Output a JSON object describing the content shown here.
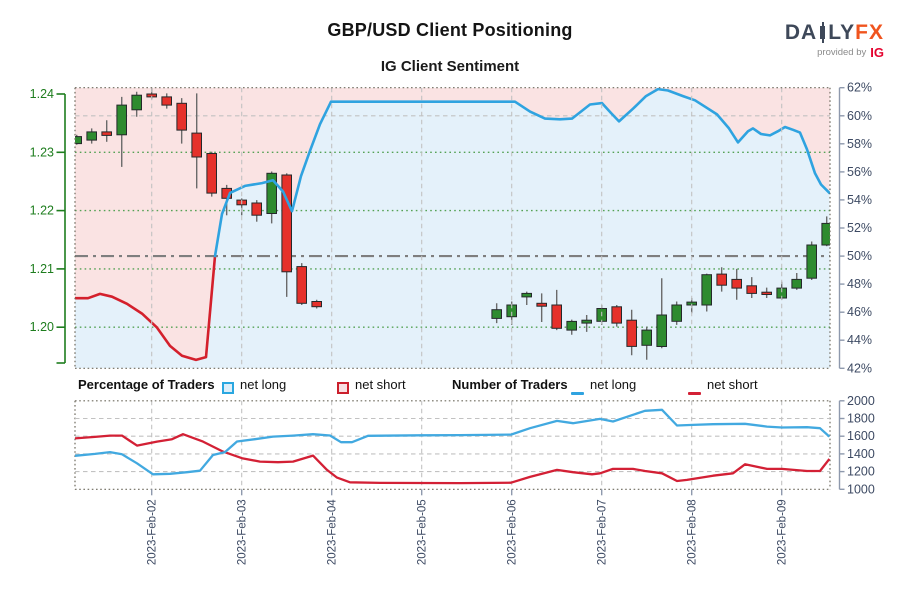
{
  "header": {
    "title": "GBP/USD Client Positioning",
    "subtitle": "IG Client Sentiment"
  },
  "logo": {
    "brand_prefix": "DA",
    "brand_suffix": "LY",
    "brand_accent": "FX",
    "provided_by": "provided by",
    "provider": "IG"
  },
  "legend": {
    "percentage_group_label": "Percentage of Traders",
    "percentage_net_long_label": "net long",
    "percentage_net_short_label": "net short",
    "number_group_label": "Number of Traders",
    "number_net_long_label": "net long",
    "number_net_short_label": "net short"
  },
  "colors": {
    "sentiment_long_line": "#2fa3e0",
    "sentiment_short_line": "#d4202c",
    "fill_above_line": "#fae3e3",
    "fill_below_line": "#e4f1fa",
    "candle_up": "#2e8b2f",
    "candle_down": "#e5312b",
    "candle_outline": "#25292b",
    "wick": "#6a6a6a",
    "price_axis": "#1e7d1e",
    "axis_labels": "#3d4a63",
    "grid_green": "#55a255",
    "grid_grey": "#c2c2c2",
    "reference_line": "#7e7e7e",
    "panel_border": "#6f6b5f",
    "count_long_line": "#42a9e0",
    "count_short_line": "#d32035"
  },
  "chart_data": [
    {
      "type": "candlestick+line",
      "title": "IG Client Sentiment",
      "x_tick_labels": [
        "2023-Feb-02",
        "2023-Feb-03",
        "2023-Feb-04",
        "2023-Feb-05",
        "2023-Feb-06",
        "2023-Feb-07",
        "2023-Feb-08",
        "2023-Feb-09"
      ],
      "price_axis": {
        "tick_labels": [
          "1.24",
          "1.23",
          "1.22",
          "1.21",
          "1.20"
        ],
        "tick_values": [
          1.24,
          1.23,
          1.22,
          1.21,
          1.2
        ],
        "grid_values": [
          1.23,
          1.22,
          1.21,
          1.2
        ]
      },
      "pct_axis": {
        "tick_labels": [
          "62%",
          "60%",
          "58%",
          "56%",
          "54%",
          "52%",
          "50%",
          "48%",
          "46%",
          "44%",
          "42%"
        ],
        "tick_values": [
          62,
          60,
          58,
          56,
          54,
          52,
          50,
          48,
          46,
          44,
          42
        ],
        "grid_values": [
          60
        ],
        "reference_value": 50,
        "range": [
          42,
          62
        ]
      },
      "candles_columns": [
        "day_offset",
        "open",
        "high",
        "low",
        "close"
      ],
      "candles": [
        [
          -0.833,
          1.2315,
          1.233,
          1.2313,
          1.2327
        ],
        [
          -0.667,
          1.2321,
          1.2341,
          1.2315,
          1.2335
        ],
        [
          -0.5,
          1.2335,
          1.2355,
          1.2318,
          1.2329
        ],
        [
          -0.333,
          1.233,
          1.2395,
          1.2275,
          1.2381
        ],
        [
          -0.167,
          1.2373,
          1.2404,
          1.2361,
          1.2398
        ],
        [
          0,
          1.24,
          1.241,
          1.2391,
          1.2395
        ],
        [
          0.167,
          1.2395,
          1.2401,
          1.2375,
          1.2381
        ],
        [
          0.333,
          1.2384,
          1.2393,
          1.2315,
          1.2338
        ],
        [
          0.5,
          1.2333,
          1.2401,
          1.2238,
          1.2292
        ],
        [
          0.667,
          1.2298,
          1.2301,
          1.2224,
          1.223
        ],
        [
          0.833,
          1.2238,
          1.2244,
          1.2192,
          1.2221
        ],
        [
          1,
          1.2218,
          1.2221,
          1.2192,
          1.221
        ],
        [
          1.167,
          1.2213,
          1.2218,
          1.2181,
          1.2192
        ],
        [
          1.333,
          1.2195,
          1.2267,
          1.2178,
          1.2264
        ],
        [
          1.5,
          1.2261,
          1.2264,
          1.2052,
          1.2095
        ],
        [
          1.667,
          1.2104,
          1.211,
          1.2038,
          1.2041
        ],
        [
          1.833,
          1.2044,
          1.2047,
          1.2032,
          1.2035
        ],
        [
          3.833,
          1.2015,
          1.2041,
          1.2007,
          1.203
        ],
        [
          4,
          1.2018,
          1.2044,
          1.2004,
          1.2038
        ],
        [
          4.167,
          1.2052,
          1.2061,
          1.2038,
          1.2058
        ],
        [
          4.333,
          1.2041,
          1.2058,
          1.2009,
          1.2036
        ],
        [
          4.5,
          1.2038,
          1.2064,
          1.1995,
          1.1998
        ],
        [
          4.667,
          1.1995,
          1.2013,
          1.1987,
          1.201
        ],
        [
          4.833,
          1.2007,
          1.2021,
          1.1992,
          1.2012
        ],
        [
          5,
          1.201,
          1.2038,
          1.2004,
          1.2032
        ],
        [
          5.167,
          1.2035,
          1.2038,
          1.2001,
          1.2007
        ],
        [
          5.333,
          1.2012,
          1.203,
          1.1952,
          1.1967
        ],
        [
          5.5,
          1.1969,
          1.2001,
          1.1944,
          1.1995
        ],
        [
          5.667,
          1.1967,
          1.2084,
          1.1964,
          1.2021
        ],
        [
          5.833,
          1.201,
          1.2044,
          1.2004,
          1.2038
        ],
        [
          6,
          1.2038,
          1.205,
          1.2024,
          1.2043
        ],
        [
          6.167,
          1.2038,
          1.2092,
          1.2027,
          1.209
        ],
        [
          6.333,
          1.2091,
          1.2103,
          1.2061,
          1.2072
        ],
        [
          6.5,
          1.2082,
          1.21,
          1.2047,
          1.2067
        ],
        [
          6.667,
          1.2071,
          1.2086,
          1.205,
          1.2058
        ],
        [
          6.833,
          1.206,
          1.2068,
          1.205,
          1.2056
        ],
        [
          7,
          1.205,
          1.2078,
          1.2047,
          1.2067
        ],
        [
          7.167,
          1.2067,
          1.2093,
          1.2064,
          1.2082
        ],
        [
          7.333,
          1.2084,
          1.2147,
          1.2081,
          1.2141
        ],
        [
          7.5,
          1.2141,
          1.219,
          1.2139,
          1.2178
        ]
      ],
      "sentiment_net_long_pct": {
        "short_segment": [
          [
            -0.852,
            47.0
          ],
          [
            -0.708,
            47.0
          ],
          [
            -0.574,
            47.3
          ],
          [
            -0.441,
            47.1
          ],
          [
            -0.274,
            46.6
          ],
          [
            -0.108,
            45.9
          ],
          [
            0.059,
            44.9
          ],
          [
            0.203,
            43.6
          ],
          [
            0.337,
            42.9
          ],
          [
            0.492,
            42.6
          ],
          [
            0.603,
            42.8
          ],
          [
            0.703,
            50.0
          ]
        ],
        "long_segment": [
          [
            0.703,
            50.0
          ],
          [
            0.781,
            53.0
          ],
          [
            0.87,
            54.5
          ],
          [
            1.037,
            55.0
          ],
          [
            1.226,
            55.2
          ],
          [
            1.348,
            55.4
          ],
          [
            1.459,
            54.6
          ],
          [
            1.559,
            53.2
          ],
          [
            1.659,
            55.7
          ],
          [
            1.759,
            57.5
          ],
          [
            1.87,
            59.4
          ],
          [
            1.992,
            61.0
          ],
          [
            3.0,
            61.0
          ],
          [
            4.037,
            61.0
          ],
          [
            4.203,
            60.3
          ],
          [
            4.37,
            59.8
          ],
          [
            4.537,
            59.75
          ],
          [
            4.67,
            59.8
          ],
          [
            4.87,
            60.8
          ],
          [
            5.003,
            60.9
          ],
          [
            5.103,
            60.2
          ],
          [
            5.192,
            59.6
          ],
          [
            5.348,
            60.5
          ],
          [
            5.492,
            61.4
          ],
          [
            5.626,
            61.9
          ],
          [
            5.737,
            61.8
          ],
          [
            5.903,
            61.4
          ],
          [
            6.037,
            61.1
          ],
          [
            6.159,
            60.6
          ],
          [
            6.281,
            60.1
          ],
          [
            6.414,
            59.1
          ],
          [
            6.514,
            58.1
          ],
          [
            6.626,
            58.9
          ],
          [
            6.681,
            59.1
          ],
          [
            6.77,
            58.7
          ],
          [
            6.87,
            58.6
          ],
          [
            6.959,
            58.9
          ],
          [
            7.037,
            59.2
          ],
          [
            7.126,
            59.0
          ],
          [
            7.203,
            58.8
          ],
          [
            7.281,
            57.6
          ],
          [
            7.37,
            55.9
          ],
          [
            7.437,
            55.1
          ],
          [
            7.53,
            54.5
          ]
        ]
      }
    },
    {
      "type": "line",
      "y_axis": {
        "tick_labels": [
          "2000",
          "1800",
          "1600",
          "1400",
          "1200",
          "1000"
        ],
        "tick_values": [
          2000,
          1800,
          1600,
          1400,
          1200,
          1000
        ],
        "grid_values": [
          1800,
          1600,
          1400,
          1200
        ],
        "range": [
          1000,
          2000
        ]
      },
      "series": [
        {
          "name": "net long",
          "color_key": "count_long_line",
          "points": [
            [
              -0.852,
              1378
            ],
            [
              -0.63,
              1400
            ],
            [
              -0.463,
              1420
            ],
            [
              -0.33,
              1396
            ],
            [
              -0.163,
              1294
            ],
            [
              0.014,
              1170
            ],
            [
              0.203,
              1175
            ],
            [
              0.392,
              1193
            ],
            [
              0.537,
              1210
            ],
            [
              0.681,
              1388
            ],
            [
              0.815,
              1420
            ],
            [
              0.948,
              1540
            ],
            [
              1.148,
              1566
            ],
            [
              1.348,
              1596
            ],
            [
              1.57,
              1607
            ],
            [
              1.792,
              1623
            ],
            [
              1.981,
              1608
            ],
            [
              2.103,
              1532
            ],
            [
              2.226,
              1532
            ],
            [
              2.403,
              1605
            ],
            [
              2.981,
              1610
            ],
            [
              3.426,
              1612
            ],
            [
              3.992,
              1618
            ],
            [
              4.203,
              1690
            ],
            [
              4.503,
              1773
            ],
            [
              4.681,
              1747
            ],
            [
              4.981,
              1796
            ],
            [
              5.126,
              1766
            ],
            [
              5.481,
              1887
            ],
            [
              5.67,
              1898
            ],
            [
              5.837,
              1721
            ],
            [
              6.014,
              1728
            ],
            [
              6.237,
              1736
            ],
            [
              6.592,
              1740
            ],
            [
              6.837,
              1709
            ],
            [
              7.003,
              1698
            ],
            [
              7.281,
              1702
            ],
            [
              7.426,
              1690
            ],
            [
              7.53,
              1596
            ]
          ]
        },
        {
          "name": "net short",
          "color_key": "count_short_line",
          "points": [
            [
              -0.852,
              1575
            ],
            [
              -0.63,
              1592
            ],
            [
              -0.463,
              1607
            ],
            [
              -0.33,
              1607
            ],
            [
              -0.163,
              1494
            ],
            [
              0.059,
              1539
            ],
            [
              0.226,
              1566
            ],
            [
              0.348,
              1623
            ],
            [
              0.57,
              1539
            ],
            [
              0.792,
              1426
            ],
            [
              1.003,
              1351
            ],
            [
              1.203,
              1313
            ],
            [
              1.403,
              1306
            ],
            [
              1.57,
              1313
            ],
            [
              1.792,
              1381
            ],
            [
              1.948,
              1219
            ],
            [
              2.059,
              1132
            ],
            [
              2.203,
              1079
            ],
            [
              2.537,
              1072
            ],
            [
              3.426,
              1070
            ],
            [
              3.992,
              1075
            ],
            [
              4.203,
              1140
            ],
            [
              4.503,
              1219
            ],
            [
              4.681,
              1193
            ],
            [
              4.892,
              1170
            ],
            [
              4.981,
              1181
            ],
            [
              5.126,
              1230
            ],
            [
              5.348,
              1230
            ],
            [
              5.481,
              1207
            ],
            [
              5.67,
              1181
            ],
            [
              5.837,
              1094
            ],
            [
              5.948,
              1106
            ],
            [
              6.237,
              1154
            ],
            [
              6.459,
              1181
            ],
            [
              6.592,
              1283
            ],
            [
              6.837,
              1230
            ],
            [
              7.003,
              1230
            ],
            [
              7.281,
              1207
            ],
            [
              7.426,
              1207
            ],
            [
              7.53,
              1343
            ]
          ]
        }
      ]
    }
  ]
}
